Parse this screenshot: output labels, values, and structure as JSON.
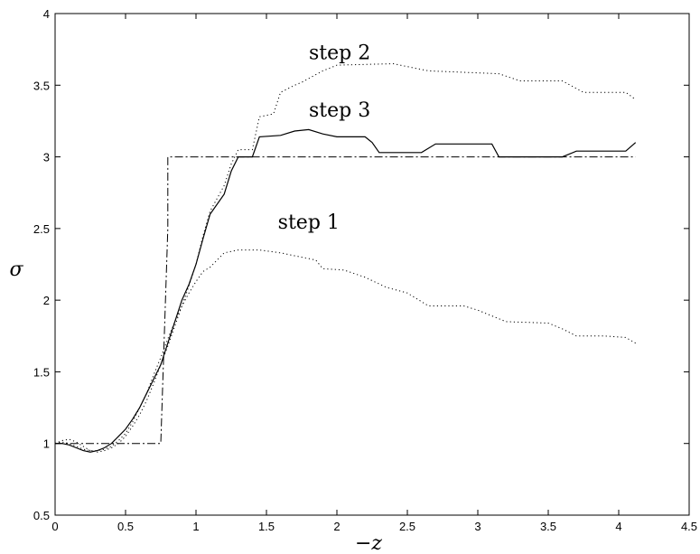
{
  "chart_data": {
    "type": "line",
    "xlabel": "−z",
    "ylabel": "σ",
    "xlim": [
      0,
      4.5
    ],
    "ylim": [
      0.5,
      4
    ],
    "xticks": [
      "0",
      "0.5",
      "1",
      "1.5",
      "2",
      "2.5",
      "3",
      "3.5",
      "4",
      "4.5"
    ],
    "yticks": [
      "0.5",
      "1",
      "1.5",
      "2",
      "2.5",
      "3",
      "3.5",
      "4"
    ],
    "grid": false,
    "annotations": [
      {
        "text": "step 2",
        "x": 2.02,
        "y": 3.68
      },
      {
        "text": "step 3",
        "x": 2.02,
        "y": 3.28
      },
      {
        "text": "step 1",
        "x": 1.8,
        "y": 2.5
      }
    ],
    "series": [
      {
        "style": "dashdot",
        "x": [
          0,
          0.75,
          0.75,
          0.8,
          0.8,
          4.12
        ],
        "y": [
          1.0,
          1.0,
          1.0,
          2.5,
          3.0,
          3.0
        ]
      },
      {
        "style": "solid",
        "x": [
          0,
          0.05,
          0.1,
          0.15,
          0.2,
          0.25,
          0.3,
          0.35,
          0.4,
          0.45,
          0.5,
          0.55,
          0.6,
          0.65,
          0.7,
          0.75,
          0.8,
          0.85,
          0.9,
          0.95,
          1.0,
          1.05,
          1.1,
          1.2,
          1.25,
          1.3,
          1.4,
          1.45,
          1.6,
          1.7,
          1.8,
          1.9,
          2.0,
          2.2,
          2.25,
          2.3,
          2.6,
          2.7,
          3.1,
          3.15,
          3.6,
          3.7,
          4.05,
          4.12
        ],
        "y": [
          1.0,
          1.0,
          0.99,
          0.97,
          0.95,
          0.94,
          0.95,
          0.97,
          1.0,
          1.05,
          1.1,
          1.17,
          1.25,
          1.35,
          1.45,
          1.55,
          1.7,
          1.85,
          2.0,
          2.11,
          2.25,
          2.43,
          2.6,
          2.74,
          2.9,
          3.0,
          3.0,
          3.14,
          3.15,
          3.18,
          3.19,
          3.16,
          3.14,
          3.14,
          3.1,
          3.03,
          3.03,
          3.09,
          3.09,
          3.0,
          3.0,
          3.04,
          3.04,
          3.1
        ]
      },
      {
        "style": "dotted",
        "x": [
          0,
          0.05,
          0.1,
          0.15,
          0.2,
          0.25,
          0.3,
          0.35,
          0.4,
          0.45,
          0.5,
          0.55,
          0.6,
          0.65,
          0.7,
          0.75,
          0.8,
          0.85,
          0.9,
          0.95,
          1.0,
          1.05,
          1.1,
          1.2,
          1.25,
          1.3,
          1.4,
          1.45,
          1.55,
          1.6,
          1.7,
          1.75,
          1.9,
          1.95,
          2.0,
          2.4,
          2.55,
          2.65,
          3.15,
          3.3,
          3.6,
          3.75,
          4.05,
          4.12
        ],
        "y": [
          1.0,
          1.02,
          1.03,
          1.01,
          0.98,
          0.95,
          0.94,
          0.95,
          0.97,
          1.0,
          1.05,
          1.12,
          1.2,
          1.3,
          1.42,
          1.55,
          1.68,
          1.82,
          1.96,
          2.1,
          2.25,
          2.45,
          2.62,
          2.8,
          2.95,
          3.05,
          3.05,
          3.28,
          3.3,
          3.45,
          3.5,
          3.52,
          3.6,
          3.62,
          3.64,
          3.65,
          3.62,
          3.6,
          3.58,
          3.53,
          3.53,
          3.45,
          3.45,
          3.4
        ]
      },
      {
        "style": "dotted",
        "x": [
          0,
          0.05,
          0.1,
          0.15,
          0.2,
          0.25,
          0.3,
          0.35,
          0.4,
          0.45,
          0.5,
          0.55,
          0.6,
          0.65,
          0.7,
          0.75,
          0.8,
          0.85,
          0.9,
          0.95,
          1.0,
          1.05,
          1.1,
          1.2,
          1.3,
          1.45,
          1.6,
          1.7,
          1.85,
          1.9,
          2.05,
          2.2,
          2.35,
          2.5,
          2.65,
          2.9,
          3.0,
          3.2,
          3.5,
          3.6,
          3.7,
          3.9,
          4.05,
          4.12
        ],
        "y": [
          1.0,
          1.01,
          1.0,
          0.98,
          0.96,
          0.95,
          0.95,
          0.96,
          0.98,
          1.02,
          1.07,
          1.15,
          1.25,
          1.35,
          1.48,
          1.6,
          1.73,
          1.85,
          1.96,
          2.05,
          2.13,
          2.2,
          2.23,
          2.33,
          2.35,
          2.35,
          2.33,
          2.31,
          2.28,
          2.22,
          2.21,
          2.16,
          2.09,
          2.05,
          1.96,
          1.96,
          1.93,
          1.85,
          1.84,
          1.8,
          1.75,
          1.75,
          1.74,
          1.7
        ]
      }
    ]
  }
}
